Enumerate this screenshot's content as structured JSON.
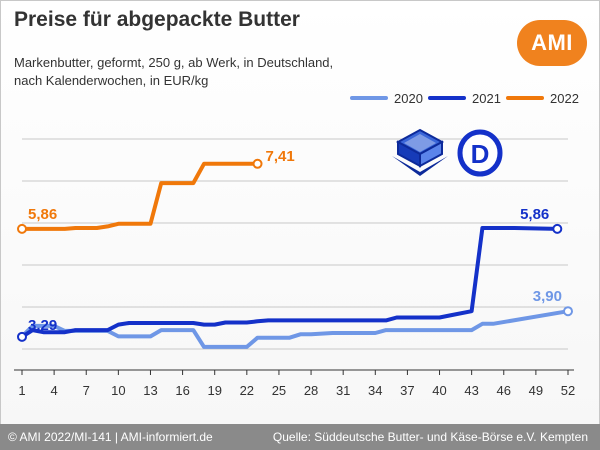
{
  "header": {
    "title": "Preise für abgepackte Butter",
    "subtitle_line1": "Markenbutter, geformt, 250 g, ab Werk, in Deutschland,",
    "subtitle_line2": "nach Kalenderwochen, in EUR/kg",
    "logo_text": "AMI"
  },
  "footer": {
    "left": "© AMI 2022/MI-141 | AMI-informiert.de",
    "right": "Quelle: Süddeutsche Butter- und Käse-Börse e.V. Kempten"
  },
  "badge": {
    "letter": "D"
  },
  "colors": {
    "s2020": "#6f97e6",
    "s2021": "#1431c9",
    "s2022": "#f0780a",
    "grid": "#c8c8c8",
    "axis": "#333333"
  },
  "chart_data": {
    "type": "line",
    "title": "Preise für abgepackte Butter",
    "xlabel": "",
    "ylabel": "",
    "x_ticks": [
      1,
      4,
      7,
      10,
      13,
      16,
      19,
      22,
      25,
      28,
      31,
      34,
      37,
      40,
      43,
      46,
      49,
      52
    ],
    "xlim": [
      1,
      52
    ],
    "ylim": [
      2.5,
      8.5
    ],
    "grid": "horizontal",
    "legend_position": "top-right",
    "series": [
      {
        "name": "2020",
        "color": "#6f97e6",
        "x": [
          1,
          2,
          4,
          5,
          6,
          9,
          10,
          11,
          13,
          14,
          15,
          17,
          18,
          19,
          22,
          23,
          26,
          27,
          28,
          30,
          31,
          34,
          35,
          37,
          43,
          44,
          45,
          52
        ],
        "y": [
          3.3,
          3.55,
          3.55,
          3.43,
          3.43,
          3.43,
          3.3,
          3.3,
          3.3,
          3.45,
          3.45,
          3.45,
          3.05,
          3.05,
          3.05,
          3.27,
          3.27,
          3.35,
          3.35,
          3.38,
          3.38,
          3.38,
          3.45,
          3.45,
          3.45,
          3.6,
          3.6,
          3.9
        ],
        "data_labels": [
          {
            "x": 52,
            "y": 3.9,
            "text": "3,90"
          }
        ]
      },
      {
        "name": "2021",
        "color": "#1431c9",
        "x": [
          1,
          2,
          3,
          5,
          6,
          9,
          10,
          11,
          17,
          18,
          19,
          20,
          22,
          23,
          24,
          25,
          35,
          36,
          40,
          41,
          43,
          44,
          47,
          51
        ],
        "y": [
          3.29,
          3.45,
          3.4,
          3.4,
          3.45,
          3.45,
          3.58,
          3.62,
          3.62,
          3.58,
          3.58,
          3.63,
          3.63,
          3.66,
          3.68,
          3.68,
          3.68,
          3.75,
          3.75,
          3.8,
          3.9,
          5.88,
          5.88,
          5.86
        ],
        "data_labels": [
          {
            "x": 1,
            "y": 3.29,
            "text": "3,29"
          },
          {
            "x": 51,
            "y": 5.86,
            "text": "5,86"
          }
        ]
      },
      {
        "name": "2022",
        "color": "#f0780a",
        "x": [
          1,
          5,
          6,
          8,
          9,
          10,
          13,
          14,
          17,
          18,
          22,
          23
        ],
        "y": [
          5.86,
          5.86,
          5.88,
          5.88,
          5.92,
          5.98,
          5.98,
          6.95,
          6.95,
          7.41,
          7.41,
          7.41
        ],
        "data_labels": [
          {
            "x": 1,
            "y": 5.86,
            "text": "5,86"
          },
          {
            "x": 23,
            "y": 7.41,
            "text": "7,41"
          }
        ]
      }
    ]
  }
}
